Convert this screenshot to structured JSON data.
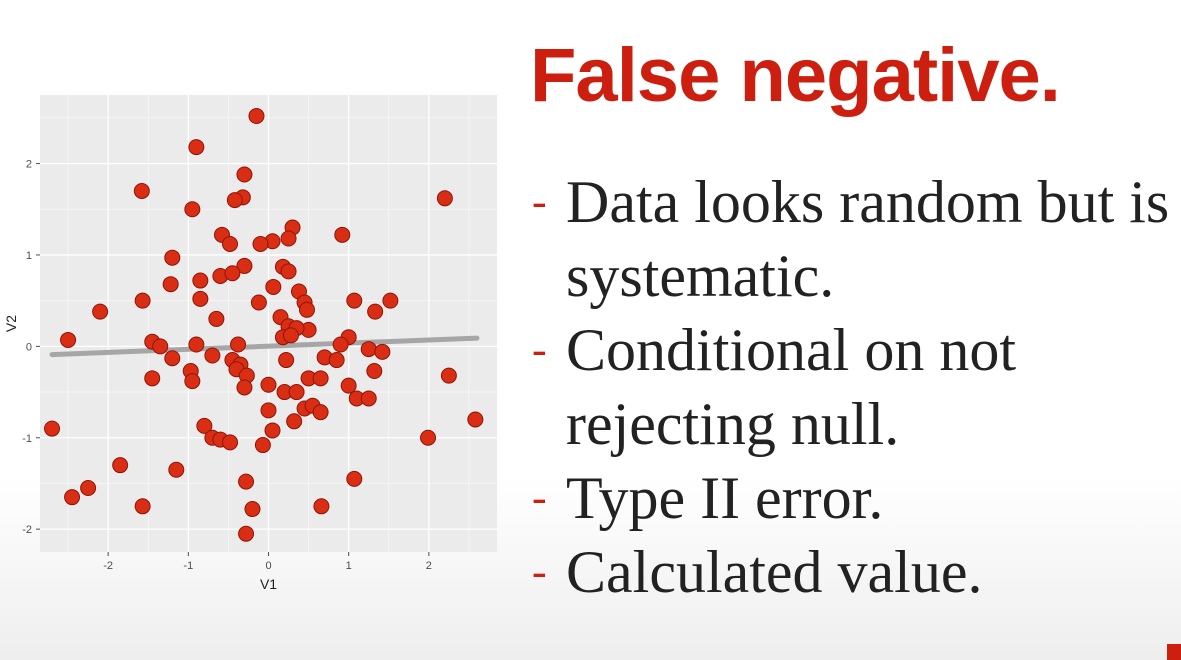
{
  "slide": {
    "title": "False negative.",
    "bullets": [
      "Data looks random but is systematic.",
      "Conditional on not rejecting null.",
      "Type II error.",
      "Calculated value."
    ],
    "bullet_marker": "-"
  },
  "colors": {
    "accent": "#cc1f10",
    "point": "#d92e14",
    "point_outline": "#8f1408",
    "panel": "#ebebeb",
    "gridline": "#ffffff",
    "fit_line": "#a6a6a6",
    "text": "#222222",
    "axis_text": "#4d4d4d"
  },
  "chart_data": {
    "type": "scatter",
    "xlabel": "V1",
    "ylabel": "V2",
    "xlim": [
      -2.85,
      2.85
    ],
    "ylim": [
      -2.25,
      2.75
    ],
    "x_ticks": [
      -2,
      -1,
      0,
      1,
      2
    ],
    "y_ticks": [
      -2,
      -1,
      0,
      1,
      2
    ],
    "x_tick_labels": [
      "-2",
      "-1",
      "0",
      "1",
      "2"
    ],
    "y_tick_labels": [
      "-2",
      "-1",
      "0",
      "1",
      "2"
    ],
    "grid": true,
    "legend": "none",
    "points": [
      [
        -0.15,
        2.52
      ],
      [
        -0.9,
        2.18
      ],
      [
        -0.3,
        1.88
      ],
      [
        -1.58,
        1.7
      ],
      [
        -0.32,
        1.63
      ],
      [
        -0.42,
        1.6
      ],
      [
        2.2,
        1.62
      ],
      [
        -0.95,
        1.5
      ],
      [
        0.3,
        1.3
      ],
      [
        -0.58,
        1.22
      ],
      [
        0.92,
        1.22
      ],
      [
        0.05,
        1.15
      ],
      [
        -0.1,
        1.12
      ],
      [
        0.25,
        1.18
      ],
      [
        -0.48,
        1.12
      ],
      [
        -1.2,
        0.97
      ],
      [
        -0.3,
        0.88
      ],
      [
        0.18,
        0.87
      ],
      [
        0.25,
        0.82
      ],
      [
        -0.6,
        0.77
      ],
      [
        -0.45,
        0.8
      ],
      [
        -0.85,
        0.72
      ],
      [
        -1.22,
        0.68
      ],
      [
        0.38,
        0.6
      ],
      [
        0.06,
        0.65
      ],
      [
        -0.85,
        0.52
      ],
      [
        -1.57,
        0.5
      ],
      [
        -0.12,
        0.48
      ],
      [
        0.45,
        0.48
      ],
      [
        1.07,
        0.5
      ],
      [
        1.52,
        0.5
      ],
      [
        1.33,
        0.38
      ],
      [
        -2.1,
        0.38
      ],
      [
        0.48,
        0.4
      ],
      [
        -0.65,
        0.3
      ],
      [
        0.15,
        0.32
      ],
      [
        0.25,
        0.22
      ],
      [
        0.5,
        0.18
      ],
      [
        0.35,
        0.2
      ],
      [
        0.18,
        0.1
      ],
      [
        0.28,
        0.12
      ],
      [
        1.0,
        0.1
      ],
      [
        -2.5,
        0.07
      ],
      [
        -1.45,
        0.05
      ],
      [
        -0.9,
        0.02
      ],
      [
        -0.38,
        0.02
      ],
      [
        0.9,
        0.02
      ],
      [
        -1.35,
        0.0
      ],
      [
        1.25,
        -0.03
      ],
      [
        1.42,
        -0.06
      ],
      [
        -0.7,
        -0.1
      ],
      [
        -1.2,
        -0.13
      ],
      [
        -0.45,
        -0.15
      ],
      [
        0.7,
        -0.12
      ],
      [
        0.85,
        -0.15
      ],
      [
        0.22,
        -0.15
      ],
      [
        -0.35,
        -0.2
      ],
      [
        -0.4,
        -0.25
      ],
      [
        -0.97,
        -0.27
      ],
      [
        1.32,
        -0.27
      ],
      [
        -0.27,
        -0.32
      ],
      [
        2.25,
        -0.32
      ],
      [
        -1.45,
        -0.35
      ],
      [
        0.5,
        -0.35
      ],
      [
        0.65,
        -0.35
      ],
      [
        -0.95,
        -0.38
      ],
      [
        0.0,
        -0.42
      ],
      [
        1.0,
        -0.43
      ],
      [
        -0.3,
        -0.45
      ],
      [
        0.2,
        -0.5
      ],
      [
        0.35,
        -0.5
      ],
      [
        1.1,
        -0.57
      ],
      [
        1.25,
        -0.57
      ],
      [
        0.45,
        -0.68
      ],
      [
        0.55,
        -0.65
      ],
      [
        0.0,
        -0.7
      ],
      [
        0.65,
        -0.72
      ],
      [
        2.58,
        -0.8
      ],
      [
        0.32,
        -0.82
      ],
      [
        -0.8,
        -0.87
      ],
      [
        -2.7,
        -0.9
      ],
      [
        0.05,
        -0.92
      ],
      [
        -0.7,
        -1.0
      ],
      [
        -0.6,
        -1.02
      ],
      [
        -0.48,
        -1.05
      ],
      [
        -0.07,
        -1.08
      ],
      [
        1.99,
        -1.0
      ],
      [
        -1.85,
        -1.3
      ],
      [
        -1.15,
        -1.35
      ],
      [
        -0.28,
        -1.48
      ],
      [
        1.07,
        -1.45
      ],
      [
        -2.25,
        -1.55
      ],
      [
        -2.45,
        -1.65
      ],
      [
        -1.57,
        -1.75
      ],
      [
        -0.2,
        -1.78
      ],
      [
        0.66,
        -1.75
      ],
      [
        -0.28,
        -2.05
      ]
    ],
    "fit_line": {
      "x": [
        -2.7,
        2.6
      ],
      "y": [
        -0.09,
        0.09
      ]
    }
  }
}
